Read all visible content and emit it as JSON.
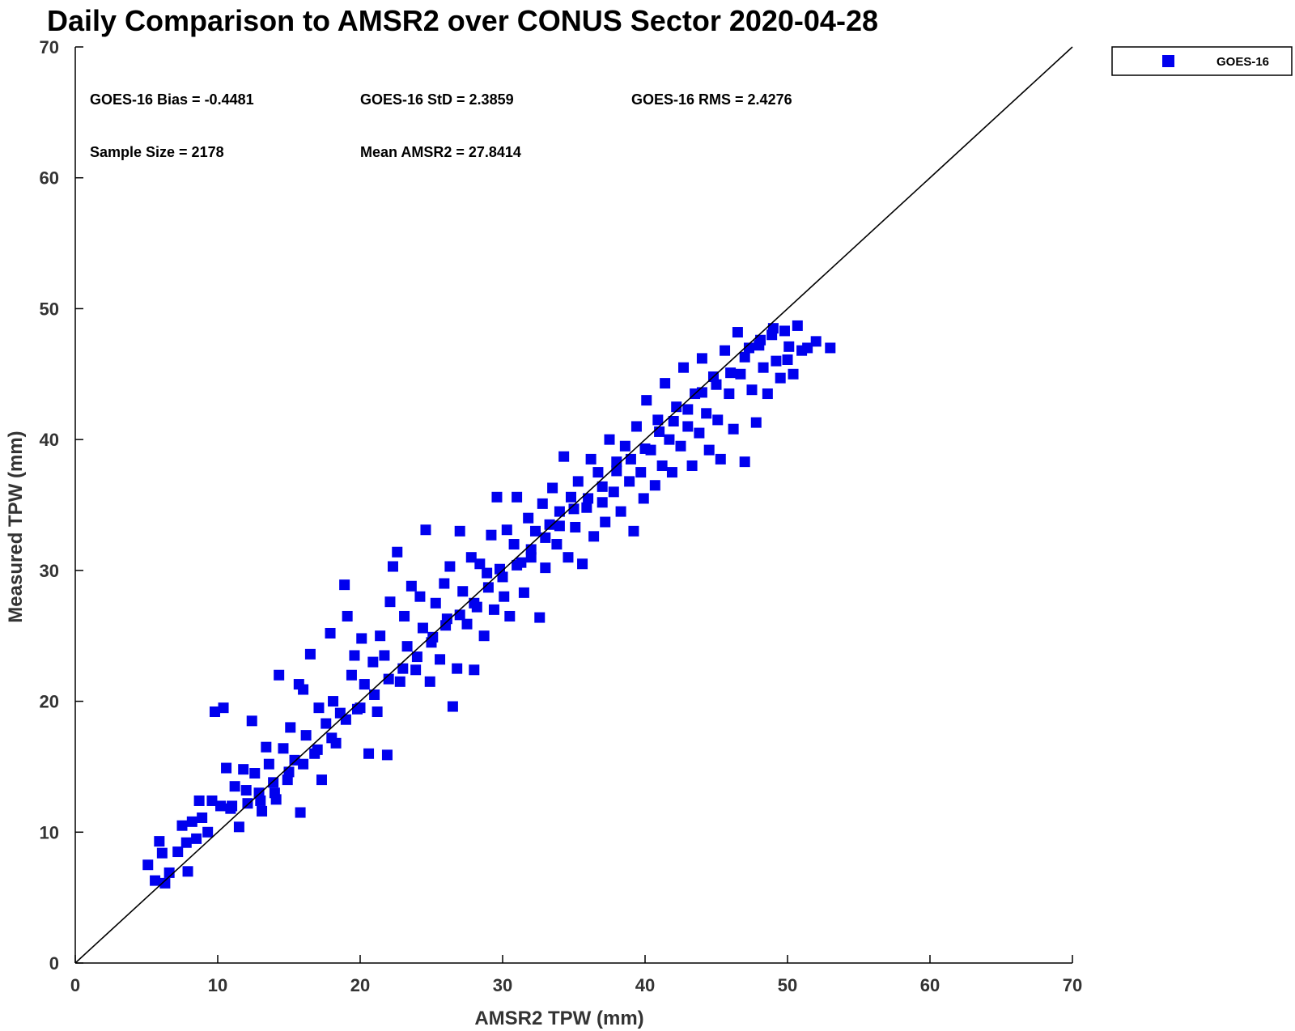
{
  "chart_data": {
    "type": "scatter",
    "title": "Daily Comparison to AMSR2 over CONUS Sector 2020-04-28",
    "xlabel": "AMSR2 TPW (mm)",
    "ylabel": "Measured TPW (mm)",
    "xlim": [
      0,
      70
    ],
    "ylim": [
      0,
      70
    ],
    "xticks": [
      0,
      10,
      20,
      30,
      40,
      50,
      60,
      70
    ],
    "yticks": [
      0,
      10,
      20,
      30,
      40,
      50,
      60,
      70
    ],
    "grid": false,
    "legend_position": "top-right, outside plot",
    "reference_line": {
      "from": [
        0,
        0
      ],
      "to": [
        70,
        70
      ],
      "color": "#000000"
    },
    "series": [
      {
        "name": "GOES-16",
        "color": "#0000ee",
        "marker": "square",
        "note_points": "representative subset of the 2178 samples",
        "points": [
          [
            5.1,
            7.5
          ],
          [
            5.6,
            6.3
          ],
          [
            5.9,
            9.3
          ],
          [
            6.1,
            8.4
          ],
          [
            6.3,
            6.1
          ],
          [
            6.6,
            6.9
          ],
          [
            7.2,
            8.5
          ],
          [
            7.5,
            10.5
          ],
          [
            7.9,
            7.0
          ],
          [
            7.8,
            9.2
          ],
          [
            8.2,
            10.8
          ],
          [
            8.5,
            9.5
          ],
          [
            8.7,
            12.4
          ],
          [
            8.9,
            11.1
          ],
          [
            9.3,
            10.0
          ],
          [
            9.6,
            12.4
          ],
          [
            9.8,
            19.2
          ],
          [
            10.4,
            19.5
          ],
          [
            10.2,
            12.0
          ],
          [
            10.6,
            14.9
          ],
          [
            10.9,
            11.8
          ],
          [
            11.2,
            13.5
          ],
          [
            11.5,
            10.4
          ],
          [
            11.8,
            14.8
          ],
          [
            12.1,
            12.2
          ],
          [
            12.4,
            18.5
          ],
          [
            12.6,
            14.5
          ],
          [
            12.9,
            13.0
          ],
          [
            13.1,
            11.6
          ],
          [
            13.4,
            16.5
          ],
          [
            13.6,
            15.2
          ],
          [
            13.9,
            13.8
          ],
          [
            14.1,
            12.5
          ],
          [
            14.3,
            22.0
          ],
          [
            14.6,
            16.4
          ],
          [
            14.9,
            14.0
          ],
          [
            15.1,
            18.0
          ],
          [
            15.4,
            15.5
          ],
          [
            15.7,
            21.3
          ],
          [
            15.8,
            11.5
          ],
          [
            16.0,
            20.9
          ],
          [
            16.2,
            17.4
          ],
          [
            16.5,
            23.6
          ],
          [
            16.8,
            16.0
          ],
          [
            17.1,
            19.5
          ],
          [
            17.3,
            14.0
          ],
          [
            17.6,
            18.3
          ],
          [
            17.9,
            25.2
          ],
          [
            18.1,
            20.0
          ],
          [
            18.3,
            16.8
          ],
          [
            18.6,
            19.1
          ],
          [
            18.9,
            28.9
          ],
          [
            19.1,
            26.5
          ],
          [
            19.4,
            22.0
          ],
          [
            19.6,
            23.5
          ],
          [
            19.8,
            19.4
          ],
          [
            20.1,
            24.8
          ],
          [
            20.3,
            21.3
          ],
          [
            20.6,
            16.0
          ],
          [
            20.9,
            23.0
          ],
          [
            21.2,
            19.2
          ],
          [
            21.4,
            25.0
          ],
          [
            21.7,
            23.5
          ],
          [
            21.9,
            15.9
          ],
          [
            22.1,
            27.6
          ],
          [
            22.3,
            30.3
          ],
          [
            22.6,
            31.4
          ],
          [
            22.8,
            21.5
          ],
          [
            23.1,
            26.5
          ],
          [
            23.3,
            24.2
          ],
          [
            23.6,
            28.8
          ],
          [
            23.9,
            22.4
          ],
          [
            24.2,
            28.0
          ],
          [
            24.4,
            25.6
          ],
          [
            24.6,
            33.1
          ],
          [
            24.9,
            21.5
          ],
          [
            25.1,
            24.9
          ],
          [
            25.3,
            27.5
          ],
          [
            25.6,
            23.2
          ],
          [
            25.9,
            29.0
          ],
          [
            26.1,
            26.3
          ],
          [
            26.3,
            30.3
          ],
          [
            26.5,
            19.6
          ],
          [
            26.8,
            22.5
          ],
          [
            27.0,
            33.0
          ],
          [
            27.2,
            28.4
          ],
          [
            27.5,
            25.9
          ],
          [
            27.8,
            31.0
          ],
          [
            28.0,
            22.4
          ],
          [
            28.2,
            27.2
          ],
          [
            28.4,
            30.5
          ],
          [
            28.7,
            25.0
          ],
          [
            28.9,
            29.8
          ],
          [
            29.2,
            32.7
          ],
          [
            29.4,
            27.0
          ],
          [
            29.6,
            35.6
          ],
          [
            29.8,
            30.1
          ],
          [
            30.1,
            28.0
          ],
          [
            30.3,
            33.1
          ],
          [
            30.5,
            26.5
          ],
          [
            30.8,
            32.0
          ],
          [
            31.0,
            35.6
          ],
          [
            31.3,
            30.6
          ],
          [
            31.5,
            28.3
          ],
          [
            31.8,
            34.0
          ],
          [
            32.0,
            31.0
          ],
          [
            32.3,
            33.0
          ],
          [
            32.6,
            26.4
          ],
          [
            32.8,
            35.1
          ],
          [
            33.0,
            30.2
          ],
          [
            33.3,
            33.5
          ],
          [
            33.5,
            36.3
          ],
          [
            33.8,
            32.0
          ],
          [
            34.0,
            34.5
          ],
          [
            34.3,
            38.7
          ],
          [
            34.6,
            31.0
          ],
          [
            34.8,
            35.6
          ],
          [
            35.1,
            33.3
          ],
          [
            35.3,
            36.8
          ],
          [
            35.6,
            30.5
          ],
          [
            35.9,
            34.8
          ],
          [
            36.2,
            38.5
          ],
          [
            36.4,
            32.6
          ],
          [
            36.7,
            37.5
          ],
          [
            37.0,
            35.2
          ],
          [
            37.2,
            33.7
          ],
          [
            37.5,
            40.0
          ],
          [
            37.8,
            36.0
          ],
          [
            38.0,
            38.3
          ],
          [
            38.3,
            34.5
          ],
          [
            38.6,
            39.5
          ],
          [
            38.9,
            36.8
          ],
          [
            39.2,
            33.0
          ],
          [
            39.4,
            41.0
          ],
          [
            39.7,
            37.5
          ],
          [
            39.9,
            35.5
          ],
          [
            40.1,
            43.0
          ],
          [
            40.4,
            39.2
          ],
          [
            40.7,
            36.5
          ],
          [
            40.9,
            41.5
          ],
          [
            41.2,
            38.0
          ],
          [
            41.4,
            44.3
          ],
          [
            41.7,
            40.0
          ],
          [
            41.9,
            37.5
          ],
          [
            42.2,
            42.5
          ],
          [
            42.5,
            39.5
          ],
          [
            42.7,
            45.5
          ],
          [
            43.0,
            41.0
          ],
          [
            43.3,
            38.0
          ],
          [
            43.5,
            43.5
          ],
          [
            43.8,
            40.5
          ],
          [
            44.0,
            46.2
          ],
          [
            44.3,
            42.0
          ],
          [
            44.5,
            39.2
          ],
          [
            44.8,
            44.8
          ],
          [
            45.1,
            41.5
          ],
          [
            45.3,
            38.5
          ],
          [
            45.6,
            46.8
          ],
          [
            45.9,
            43.5
          ],
          [
            46.2,
            40.8
          ],
          [
            46.5,
            48.2
          ],
          [
            46.7,
            45.0
          ],
          [
            47.0,
            38.3
          ],
          [
            47.3,
            47.0
          ],
          [
            47.5,
            43.8
          ],
          [
            47.8,
            41.3
          ],
          [
            48.1,
            47.6
          ],
          [
            48.3,
            45.5
          ],
          [
            48.6,
            43.5
          ],
          [
            48.9,
            48.0
          ],
          [
            49.2,
            46.0
          ],
          [
            49.5,
            44.7
          ],
          [
            49.8,
            48.3
          ],
          [
            50.1,
            47.1
          ],
          [
            50.4,
            45.0
          ],
          [
            50.7,
            48.7
          ],
          [
            51.0,
            46.8
          ],
          [
            51.4,
            47.0
          ],
          [
            52.0,
            47.5
          ],
          [
            53.0,
            47.0
          ],
          [
            11.0,
            12.0
          ],
          [
            12.0,
            13.2
          ],
          [
            13.0,
            12.4
          ],
          [
            14.0,
            13.0
          ],
          [
            15.0,
            14.6
          ],
          [
            16.0,
            15.2
          ],
          [
            17.0,
            16.3
          ],
          [
            18.0,
            17.2
          ],
          [
            19.0,
            18.6
          ],
          [
            20.0,
            19.5
          ],
          [
            21.0,
            20.5
          ],
          [
            22.0,
            21.7
          ],
          [
            23.0,
            22.5
          ],
          [
            24.0,
            23.4
          ],
          [
            25.0,
            24.5
          ],
          [
            26.0,
            25.8
          ],
          [
            27.0,
            26.6
          ],
          [
            28.0,
            27.5
          ],
          [
            29.0,
            28.7
          ],
          [
            30.0,
            29.5
          ],
          [
            31.0,
            30.4
          ],
          [
            32.0,
            31.6
          ],
          [
            33.0,
            32.5
          ],
          [
            34.0,
            33.4
          ],
          [
            35.0,
            34.7
          ],
          [
            36.0,
            35.5
          ],
          [
            37.0,
            36.4
          ],
          [
            38.0,
            37.6
          ],
          [
            39.0,
            38.5
          ],
          [
            40.0,
            39.3
          ],
          [
            41.0,
            40.6
          ],
          [
            42.0,
            41.4
          ],
          [
            43.0,
            42.3
          ],
          [
            44.0,
            43.6
          ],
          [
            45.0,
            44.2
          ],
          [
            46.0,
            45.1
          ],
          [
            47.0,
            46.3
          ],
          [
            48.0,
            47.2
          ],
          [
            49.0,
            48.5
          ],
          [
            50.0,
            46.1
          ]
        ]
      }
    ],
    "annotations": [
      {
        "text": "GOES-16 Bias = -0.4481"
      },
      {
        "text": "GOES-16 StD = 2.3859"
      },
      {
        "text": "GOES-16 RMS = 2.4276"
      },
      {
        "text": "Sample Size = 2178"
      },
      {
        "text": "Mean AMSR2 = 27.8414"
      }
    ],
    "legend": [
      {
        "label": "GOES-16",
        "color": "#0000ee",
        "marker": "square"
      }
    ]
  }
}
